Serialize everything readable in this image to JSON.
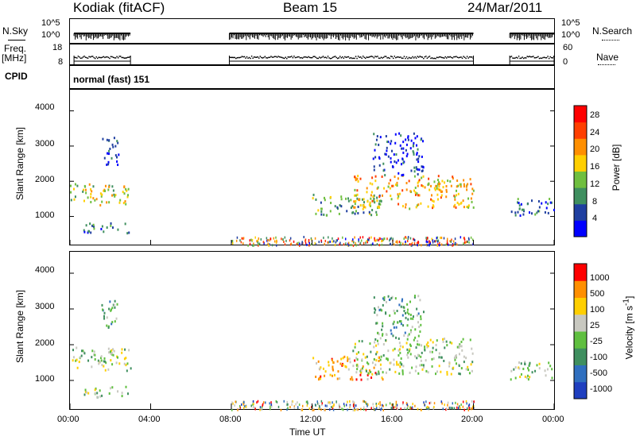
{
  "header": {
    "station": "Kodiak (fitACF)",
    "beam": "Beam 15",
    "date": "24/Mar/2011"
  },
  "summary": {
    "nsky_label": "N.Sky",
    "nsearch_label": "N.Search",
    "nsky_ticks": [
      "10^5",
      "10^0"
    ],
    "nsearch_ticks": [
      "10^5",
      "10^0"
    ],
    "freq_label_1": "Freq.",
    "freq_label_2": "[MHz]",
    "freq_ticks": [
      "18",
      "8"
    ],
    "nave_label": "Nave",
    "nave_ticks": [
      "60",
      "0"
    ],
    "cpid_label": "CPID",
    "cpid_value": "normal (fast) 151"
  },
  "chart_data": [
    {
      "type": "heatmap",
      "ylabel": "Slant Range [km]",
      "ylim": [
        200,
        4600
      ],
      "yticks": [
        1000,
        2000,
        3000,
        4000
      ],
      "xlim": [
        "00:00",
        "24:00"
      ],
      "colorbar_label": "Power [dB]",
      "colorbar_ticks": [
        4,
        8,
        12,
        16,
        20,
        24,
        28
      ],
      "colorbar_range": [
        0,
        32
      ],
      "colors": [
        "#0000ff",
        "#1f3fa0",
        "#3f8f5f",
        "#6fbf3f",
        "#ffcf00",
        "#ff8f00",
        "#ff3f00",
        "#ff0000"
      ],
      "regions": [
        {
          "t": [
            0.0,
            3.0
          ],
          "r": [
            1350,
            1950
          ],
          "level": 4
        },
        {
          "t": [
            0.6,
            2.9
          ],
          "r": [
            550,
            850
          ],
          "level": 2
        },
        {
          "t": [
            1.5,
            2.4
          ],
          "r": [
            2500,
            3300
          ],
          "level": 1
        },
        {
          "t": [
            12.0,
            15.5
          ],
          "r": [
            1050,
            1650
          ],
          "level": 3
        },
        {
          "t": [
            14.0,
            20.0
          ],
          "r": [
            1250,
            2200
          ],
          "level": 5
        },
        {
          "t": [
            15.0,
            17.5
          ],
          "r": [
            2200,
            3400
          ],
          "level": 1
        },
        {
          "t": [
            21.8,
            24.0
          ],
          "r": [
            1050,
            1550
          ],
          "level": 2
        }
      ]
    },
    {
      "type": "heatmap",
      "ylabel": "Slant Range [km]",
      "ylim": [
        200,
        4600
      ],
      "yticks": [
        1000,
        2000,
        3000,
        4000
      ],
      "xlabel": "Time UT",
      "xticks": [
        "00:00",
        "04:00",
        "08:00",
        "12:00",
        "16:00",
        "20:00",
        "00:00"
      ],
      "colorbar_label": "Velocity [m s^-1]",
      "colorbar_ticks": [
        "1000",
        "500",
        "100",
        "25",
        "-25",
        "-100",
        "-500",
        "-1000"
      ],
      "colors": [
        "#1f3fbf",
        "#2f6fbf",
        "#3f8f5f",
        "#5fbf3f",
        "#c8c8c0",
        "#ffcf00",
        "#ff8f00",
        "#ff0000"
      ],
      "regions": [
        {
          "t": [
            0.0,
            3.0
          ],
          "r": [
            1300,
            1950
          ],
          "level": 4
        },
        {
          "t": [
            0.6,
            2.9
          ],
          "r": [
            550,
            850
          ],
          "level": 4
        },
        {
          "t": [
            1.5,
            2.4
          ],
          "r": [
            2500,
            3300
          ],
          "level": 3
        },
        {
          "t": [
            12.0,
            15.5
          ],
          "r": [
            1050,
            1700
          ],
          "level": 6
        },
        {
          "t": [
            14.0,
            20.0
          ],
          "r": [
            1200,
            2200
          ],
          "level": 4
        },
        {
          "t": [
            15.0,
            17.5
          ],
          "r": [
            2200,
            3400
          ],
          "level": 3
        },
        {
          "t": [
            21.8,
            24.0
          ],
          "r": [
            1050,
            1550
          ],
          "level": 4
        }
      ]
    }
  ]
}
